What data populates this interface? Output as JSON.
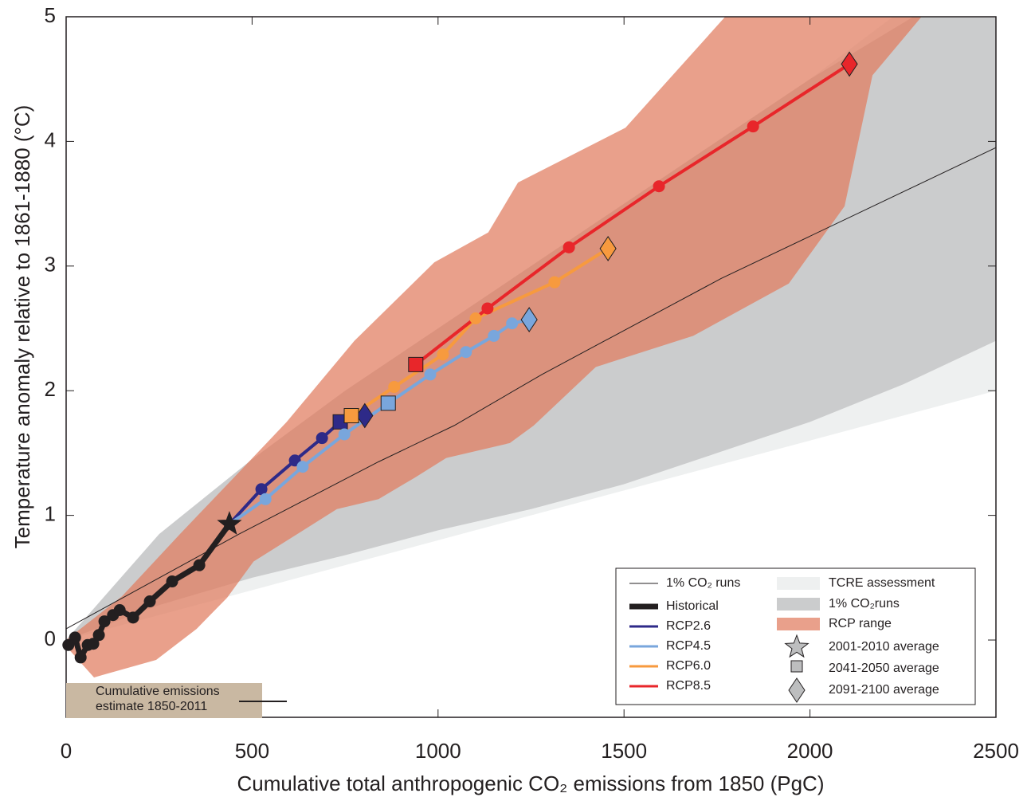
{
  "chart_data": {
    "type": "line",
    "x_label": "Cumulative total anthropogenic CO₂ emissions from 1850 (PgC)",
    "y_label": "Temperature anomaly relative to 1861-1880 (°C)",
    "xlim": [
      0,
      2500
    ],
    "ylim": [
      -0.62,
      5
    ],
    "xticks": [
      0,
      500,
      1000,
      1500,
      2000,
      2500
    ],
    "yticks": [
      0,
      1,
      2,
      3,
      4,
      5
    ],
    "bands": [
      {
        "name": "TCRE assessment",
        "color": "#eef0f0",
        "x_upper": [
          0,
          250,
          500,
          750,
          1000,
          1250,
          1500,
          1750,
          2000,
          2250,
          2500
        ],
        "upper": [
          0,
          0.56,
          1.13,
          1.69,
          2.25,
          2.81,
          3.38,
          3.94,
          4.5,
          5.06,
          5.63
        ],
        "x_lower": [
          0,
          250,
          500,
          750,
          1000,
          1250,
          1500,
          1750,
          2000,
          2250,
          2500
        ],
        "lower": [
          0,
          0.2,
          0.4,
          0.6,
          0.8,
          1.0,
          1.2,
          1.4,
          1.6,
          1.8,
          2.0
        ]
      },
      {
        "name": "1% CO₂runs",
        "color": "#cbcccd",
        "x_upper": [
          0,
          250,
          500,
          750,
          1000,
          1250,
          1500,
          1750,
          2000,
          2250,
          2500
        ],
        "upper": [
          0,
          0.85,
          1.45,
          2.0,
          2.5,
          3.0,
          3.5,
          4.0,
          4.5,
          4.95,
          5.4
        ],
        "x_lower": [
          0,
          250,
          500,
          750,
          1000,
          1250,
          1500,
          1750,
          2000,
          2250,
          2500
        ],
        "lower": [
          0,
          0.28,
          0.5,
          0.68,
          0.88,
          1.05,
          1.25,
          1.5,
          1.75,
          2.05,
          2.4
        ]
      },
      {
        "name": "RCP range",
        "color": "#e07c5e",
        "x_upper": [
          0,
          150,
          306,
          450,
          593,
          775,
          990,
          1135,
          1215,
          1504,
          1772,
          2300
        ],
        "upper": [
          0,
          0.35,
          0.85,
          1.3,
          1.75,
          2.4,
          3.03,
          3.27,
          3.67,
          4.11,
          5.0,
          5.0
        ],
        "x_lower": [
          0,
          75,
          242,
          351,
          433,
          504,
          728,
          840,
          936,
          1022,
          1193,
          1257,
          1424,
          1686,
          1943,
          2093,
          2168
        ],
        "lower": [
          -0.05,
          -0.3,
          -0.16,
          0.09,
          0.34,
          0.63,
          1.05,
          1.13,
          1.3,
          1.46,
          1.58,
          1.72,
          2.19,
          2.44,
          2.86,
          3.48,
          4.53
        ]
      }
    ],
    "reference_line": {
      "name": "1% CO₂ runs",
      "color": "#231f20",
      "x": [
        0,
        465,
        840,
        1043,
        1279,
        1761,
        2500
      ],
      "values": [
        0.09,
        0.85,
        1.43,
        1.72,
        2.13,
        2.9,
        3.95
      ]
    },
    "series": [
      {
        "name": "Historical",
        "color": "#231f20",
        "x": [
          6,
          24,
          39,
          58,
          73,
          88,
          103,
          126,
          144,
          180,
          225,
          285,
          358,
          439
        ],
        "values": [
          -0.04,
          0.02,
          -0.14,
          -0.04,
          -0.03,
          0.04,
          0.15,
          0.2,
          0.24,
          0.18,
          0.31,
          0.47,
          0.6,
          0.93
        ],
        "markers": [
          "circle",
          "circle",
          "circle",
          "circle",
          "circle",
          "circle",
          "circle",
          "circle",
          "circle",
          "circle",
          "circle",
          "circle",
          "circle",
          "star"
        ]
      },
      {
        "name": "RCP2.6",
        "color": "#2e2a88",
        "x": [
          439,
          525,
          615,
          688,
          737,
          769,
          803
        ],
        "values": [
          0.93,
          1.21,
          1.44,
          1.62,
          1.75,
          1.79,
          1.8
        ],
        "markers": [
          "none",
          "circle",
          "circle",
          "circle",
          "square",
          "circle",
          "diamond"
        ]
      },
      {
        "name": "RCP4.5",
        "color": "#79a6dc",
        "x": [
          439,
          536,
          636,
          748,
          866,
          979,
          1075,
          1150,
          1199,
          1245
        ],
        "values": [
          0.93,
          1.13,
          1.39,
          1.65,
          1.9,
          2.13,
          2.31,
          2.44,
          2.54,
          2.57
        ],
        "markers": [
          "none",
          "circle",
          "circle",
          "circle",
          "square",
          "circle",
          "circle",
          "circle",
          "circle",
          "diamond"
        ]
      },
      {
        "name": "RCP6.0",
        "color": "#f79a3e",
        "x": [
          767,
          882,
          1013,
          1101,
          1313,
          1457
        ],
        "values": [
          1.8,
          2.03,
          2.29,
          2.58,
          2.87,
          3.14
        ],
        "markers": [
          "square",
          "circle",
          "circle",
          "circle",
          "circle",
          "diamond"
        ]
      },
      {
        "name": "RCP8.5",
        "color": "#e8262a",
        "x": [
          940,
          1133,
          1352,
          1594,
          1847,
          2106
        ],
        "values": [
          2.21,
          2.66,
          3.15,
          3.64,
          4.12,
          4.62
        ],
        "markers": [
          "square",
          "circle",
          "circle",
          "circle",
          "circle",
          "diamond"
        ]
      }
    ],
    "marker_legend": [
      {
        "marker": "star",
        "label": "2001-2010 average"
      },
      {
        "marker": "square",
        "label": "2041-2050 average"
      },
      {
        "marker": "diamond",
        "label": "2091-2100 average"
      }
    ],
    "annotation": "Cumulative emissions estimate 1850-2011"
  }
}
